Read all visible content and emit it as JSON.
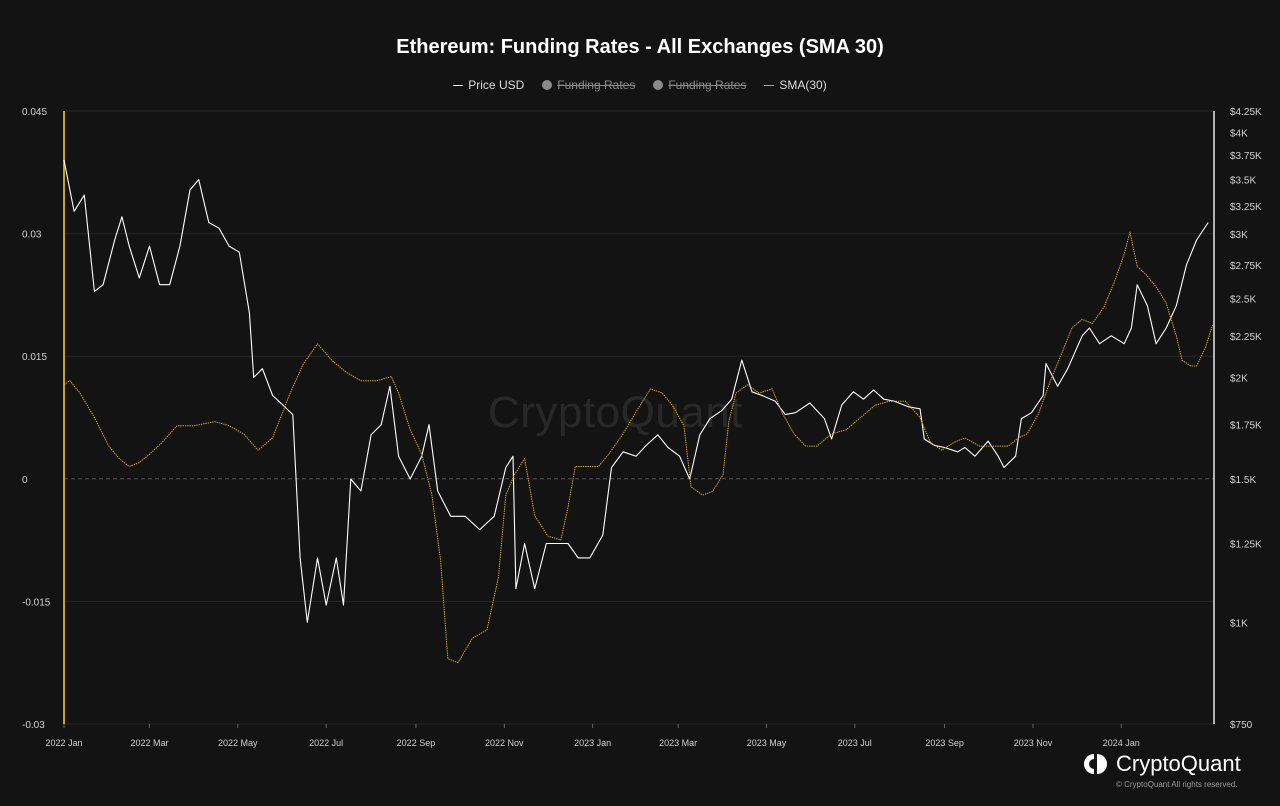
{
  "chart_data": {
    "type": "line",
    "title": "Ethereum: Funding Rates - All Exchanges (SMA 30)",
    "legend": [
      {
        "name": "Price USD",
        "color": "#ffffff",
        "marker": "line",
        "hidden": false
      },
      {
        "name": "Funding Rates",
        "color": "#8a8a8a",
        "marker": "dot",
        "hidden": true
      },
      {
        "name": "Funding Rates",
        "color": "#8a8a8a",
        "marker": "dot",
        "hidden": true
      },
      {
        "name": "SMA(30)",
        "color": "#c9a227",
        "marker": "line",
        "hidden": false
      }
    ],
    "legend_position": "top-center",
    "x_ticks": [
      "2022 Jan",
      "2022 Mar",
      "2022 May",
      "2022 Jul",
      "2022 Sep",
      "2022 Nov",
      "2023 Jan",
      "2023 Mar",
      "2023 May",
      "2023 Jul",
      "2023 Sep",
      "2023 Nov",
      "2024 Jan"
    ],
    "x_range": [
      "2022-01-01",
      "2024-03-05"
    ],
    "y_left": {
      "ticks": [
        "0.045",
        "0.03",
        "0.015",
        "0",
        "-0.015",
        "-0.03"
      ],
      "tick_values": [
        0.045,
        0.03,
        0.015,
        0,
        -0.015,
        -0.03
      ],
      "range": [
        -0.03,
        0.045
      ]
    },
    "y_right": {
      "scale": "log",
      "ticks": [
        "$4.25K",
        "$4K",
        "$3.75K",
        "$3.5K",
        "$3.25K",
        "$3K",
        "$2.75K",
        "$2.5K",
        "$2.25K",
        "$2K",
        "$1.75K",
        "$1.5K",
        "$1.25K",
        "$1K",
        "$750"
      ],
      "tick_values": [
        4250,
        4000,
        3750,
        3500,
        3250,
        3000,
        2750,
        2500,
        2250,
        2000,
        1750,
        1500,
        1250,
        1000,
        750
      ],
      "range": [
        750,
        4250
      ]
    },
    "grid": true,
    "series": [
      {
        "name": "Price USD",
        "axis": "right",
        "color": "#ffffff",
        "points": [
          [
            "2022-01-01",
            3700
          ],
          [
            "2022-01-08",
            3200
          ],
          [
            "2022-01-15",
            3350
          ],
          [
            "2022-01-22",
            2550
          ],
          [
            "2022-01-28",
            2600
          ],
          [
            "2022-02-05",
            2950
          ],
          [
            "2022-02-10",
            3150
          ],
          [
            "2022-02-15",
            2900
          ],
          [
            "2022-02-22",
            2650
          ],
          [
            "2022-03-01",
            2900
          ],
          [
            "2022-03-08",
            2600
          ],
          [
            "2022-03-15",
            2600
          ],
          [
            "2022-03-22",
            2900
          ],
          [
            "2022-03-29",
            3400
          ],
          [
            "2022-04-04",
            3500
          ],
          [
            "2022-04-11",
            3100
          ],
          [
            "2022-04-18",
            3050
          ],
          [
            "2022-04-25",
            2900
          ],
          [
            "2022-05-02",
            2850
          ],
          [
            "2022-05-09",
            2400
          ],
          [
            "2022-05-12",
            2000
          ],
          [
            "2022-05-18",
            2050
          ],
          [
            "2022-05-25",
            1900
          ],
          [
            "2022-06-01",
            1850
          ],
          [
            "2022-06-08",
            1800
          ],
          [
            "2022-06-13",
            1200
          ],
          [
            "2022-06-18",
            1000
          ],
          [
            "2022-06-25",
            1200
          ],
          [
            "2022-07-01",
            1050
          ],
          [
            "2022-07-08",
            1200
          ],
          [
            "2022-07-13",
            1050
          ],
          [
            "2022-07-18",
            1500
          ],
          [
            "2022-07-25",
            1450
          ],
          [
            "2022-08-01",
            1700
          ],
          [
            "2022-08-08",
            1750
          ],
          [
            "2022-08-14",
            1950
          ],
          [
            "2022-08-20",
            1600
          ],
          [
            "2022-08-28",
            1500
          ],
          [
            "2022-09-05",
            1600
          ],
          [
            "2022-09-10",
            1750
          ],
          [
            "2022-09-16",
            1450
          ],
          [
            "2022-09-25",
            1350
          ],
          [
            "2022-10-05",
            1350
          ],
          [
            "2022-10-15",
            1300
          ],
          [
            "2022-10-25",
            1350
          ],
          [
            "2022-11-02",
            1550
          ],
          [
            "2022-11-07",
            1600
          ],
          [
            "2022-11-09",
            1100
          ],
          [
            "2022-11-15",
            1250
          ],
          [
            "2022-11-22",
            1100
          ],
          [
            "2022-11-30",
            1250
          ],
          [
            "2022-12-07",
            1250
          ],
          [
            "2022-12-15",
            1250
          ],
          [
            "2022-12-22",
            1200
          ],
          [
            "2022-12-30",
            1200
          ],
          [
            "2023-01-08",
            1280
          ],
          [
            "2023-01-14",
            1550
          ],
          [
            "2023-01-22",
            1620
          ],
          [
            "2023-01-31",
            1600
          ],
          [
            "2023-02-07",
            1650
          ],
          [
            "2023-02-15",
            1700
          ],
          [
            "2023-02-22",
            1640
          ],
          [
            "2023-03-02",
            1600
          ],
          [
            "2023-03-09",
            1500
          ],
          [
            "2023-03-16",
            1700
          ],
          [
            "2023-03-23",
            1780
          ],
          [
            "2023-03-31",
            1820
          ],
          [
            "2023-04-07",
            1880
          ],
          [
            "2023-04-14",
            2100
          ],
          [
            "2023-04-21",
            1920
          ],
          [
            "2023-04-28",
            1900
          ],
          [
            "2023-05-07",
            1870
          ],
          [
            "2023-05-14",
            1800
          ],
          [
            "2023-05-21",
            1810
          ],
          [
            "2023-05-31",
            1860
          ],
          [
            "2023-06-10",
            1780
          ],
          [
            "2023-06-15",
            1680
          ],
          [
            "2023-06-22",
            1850
          ],
          [
            "2023-06-30",
            1920
          ],
          [
            "2023-07-07",
            1880
          ],
          [
            "2023-07-14",
            1930
          ],
          [
            "2023-07-21",
            1880
          ],
          [
            "2023-07-28",
            1870
          ],
          [
            "2023-08-07",
            1840
          ],
          [
            "2023-08-15",
            1830
          ],
          [
            "2023-08-18",
            1680
          ],
          [
            "2023-08-25",
            1650
          ],
          [
            "2023-09-01",
            1640
          ],
          [
            "2023-09-10",
            1620
          ],
          [
            "2023-09-15",
            1640
          ],
          [
            "2023-09-22",
            1600
          ],
          [
            "2023-10-01",
            1670
          ],
          [
            "2023-10-08",
            1600
          ],
          [
            "2023-10-12",
            1550
          ],
          [
            "2023-10-20",
            1600
          ],
          [
            "2023-10-24",
            1780
          ],
          [
            "2023-10-31",
            1810
          ],
          [
            "2023-11-08",
            1900
          ],
          [
            "2023-11-10",
            2080
          ],
          [
            "2023-11-18",
            1950
          ],
          [
            "2023-11-25",
            2050
          ],
          [
            "2023-12-05",
            2250
          ],
          [
            "2023-12-10",
            2300
          ],
          [
            "2023-12-17",
            2200
          ],
          [
            "2023-12-25",
            2250
          ],
          [
            "2024-01-03",
            2200
          ],
          [
            "2024-01-08",
            2300
          ],
          [
            "2024-01-12",
            2600
          ],
          [
            "2024-01-19",
            2450
          ],
          [
            "2024-01-25",
            2200
          ],
          [
            "2024-02-01",
            2300
          ],
          [
            "2024-02-08",
            2450
          ],
          [
            "2024-02-15",
            2750
          ],
          [
            "2024-02-22",
            2950
          ],
          [
            "2024-03-01",
            3100
          ]
        ]
      },
      {
        "name": "SMA(30)",
        "axis": "left",
        "color": "#c9a227",
        "points": [
          [
            "2022-01-01",
            0.0115
          ],
          [
            "2022-01-05",
            0.012
          ],
          [
            "2022-01-12",
            0.0105
          ],
          [
            "2022-01-22",
            0.0075
          ],
          [
            "2022-02-01",
            0.004
          ],
          [
            "2022-02-08",
            0.0025
          ],
          [
            "2022-02-15",
            0.0015
          ],
          [
            "2022-02-22",
            0.002
          ],
          [
            "2022-03-01",
            0.003
          ],
          [
            "2022-03-10",
            0.0045
          ],
          [
            "2022-03-20",
            0.0065
          ],
          [
            "2022-04-01",
            0.0065
          ],
          [
            "2022-04-15",
            0.007
          ],
          [
            "2022-04-25",
            0.0065
          ],
          [
            "2022-05-05",
            0.0055
          ],
          [
            "2022-05-15",
            0.0035
          ],
          [
            "2022-05-25",
            0.005
          ],
          [
            "2022-06-05",
            0.01
          ],
          [
            "2022-06-15",
            0.014
          ],
          [
            "2022-06-25",
            0.0165
          ],
          [
            "2022-07-05",
            0.0145
          ],
          [
            "2022-07-15",
            0.013
          ],
          [
            "2022-07-25",
            0.012
          ],
          [
            "2022-08-05",
            0.012
          ],
          [
            "2022-08-15",
            0.0125
          ],
          [
            "2022-08-20",
            0.0105
          ],
          [
            "2022-08-28",
            0.006
          ],
          [
            "2022-09-05",
            0.003
          ],
          [
            "2022-09-12",
            -0.002
          ],
          [
            "2022-09-18",
            -0.01
          ],
          [
            "2022-09-23",
            -0.022
          ],
          [
            "2022-09-30",
            -0.0225
          ],
          [
            "2022-10-10",
            -0.0195
          ],
          [
            "2022-10-20",
            -0.0185
          ],
          [
            "2022-10-28",
            -0.012
          ],
          [
            "2022-11-02",
            -0.002
          ],
          [
            "2022-11-08",
            0.0005
          ],
          [
            "2022-11-15",
            0.0025
          ],
          [
            "2022-11-22",
            -0.0045
          ],
          [
            "2022-12-01",
            -0.007
          ],
          [
            "2022-12-10",
            -0.0075
          ],
          [
            "2022-12-15",
            -0.0035
          ],
          [
            "2022-12-20",
            0.0015
          ],
          [
            "2022-12-28",
            0.0015
          ],
          [
            "2023-01-05",
            0.0015
          ],
          [
            "2023-01-12",
            0.003
          ],
          [
            "2023-01-22",
            0.0055
          ],
          [
            "2023-02-01",
            0.0085
          ],
          [
            "2023-02-10",
            0.011
          ],
          [
            "2023-02-18",
            0.0105
          ],
          [
            "2023-02-25",
            0.009
          ],
          [
            "2023-03-05",
            0.0065
          ],
          [
            "2023-03-10",
            -0.001
          ],
          [
            "2023-03-18",
            -0.002
          ],
          [
            "2023-03-25",
            -0.0015
          ],
          [
            "2023-04-01",
            0.0005
          ],
          [
            "2023-04-05",
            0.007
          ],
          [
            "2023-04-10",
            0.0105
          ],
          [
            "2023-04-18",
            0.0115
          ],
          [
            "2023-04-26",
            0.0105
          ],
          [
            "2023-05-05",
            0.011
          ],
          [
            "2023-05-12",
            0.008
          ],
          [
            "2023-05-20",
            0.0055
          ],
          [
            "2023-05-28",
            0.004
          ],
          [
            "2023-06-05",
            0.004
          ],
          [
            "2023-06-15",
            0.0055
          ],
          [
            "2023-06-25",
            0.006
          ],
          [
            "2023-07-05",
            0.0075
          ],
          [
            "2023-07-15",
            0.009
          ],
          [
            "2023-07-25",
            0.0095
          ],
          [
            "2023-08-05",
            0.0095
          ],
          [
            "2023-08-15",
            0.0075
          ],
          [
            "2023-08-22",
            0.0045
          ],
          [
            "2023-08-30",
            0.0035
          ],
          [
            "2023-09-08",
            0.0045
          ],
          [
            "2023-09-15",
            0.005
          ],
          [
            "2023-09-25",
            0.004
          ],
          [
            "2023-10-05",
            0.004
          ],
          [
            "2023-10-15",
            0.004
          ],
          [
            "2023-10-22",
            0.005
          ],
          [
            "2023-10-28",
            0.0055
          ],
          [
            "2023-11-05",
            0.008
          ],
          [
            "2023-11-12",
            0.0115
          ],
          [
            "2023-11-20",
            0.015
          ],
          [
            "2023-11-28",
            0.0185
          ],
          [
            "2023-12-05",
            0.0195
          ],
          [
            "2023-12-12",
            0.019
          ],
          [
            "2023-12-20",
            0.021
          ],
          [
            "2023-12-27",
            0.024
          ],
          [
            "2024-01-03",
            0.0275
          ],
          [
            "2024-01-07",
            0.0302
          ],
          [
            "2024-01-12",
            0.026
          ],
          [
            "2024-01-18",
            0.025
          ],
          [
            "2024-01-25",
            0.0235
          ],
          [
            "2024-02-01",
            0.0215
          ],
          [
            "2024-02-08",
            0.0175
          ],
          [
            "2024-02-12",
            0.0145
          ],
          [
            "2024-02-18",
            0.0138
          ],
          [
            "2024-02-22",
            0.0138
          ],
          [
            "2024-02-28",
            0.016
          ],
          [
            "2024-03-04",
            0.0188
          ]
        ]
      }
    ]
  },
  "watermark": "CryptoQuant",
  "brand": {
    "name": "CryptoQuant",
    "copyright": "© CryptoQuant All rights reserved."
  }
}
